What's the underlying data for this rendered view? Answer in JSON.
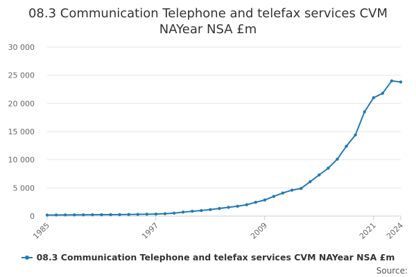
{
  "colors": {
    "series": "#1f7ab5",
    "grid": "#e6e6e6",
    "axis": "#cccccc",
    "tick_text": "#666666"
  },
  "chart_data": {
    "type": "line",
    "title": "08.3 Communication Telephone and telefax services CVM NAYear NSA £m",
    "xlabel": "",
    "ylabel": "",
    "x_range": [
      1985,
      2024
    ],
    "ylim": [
      0,
      30000
    ],
    "y_ticks": [
      0,
      5000,
      10000,
      15000,
      20000,
      25000,
      30000
    ],
    "y_tick_labels": [
      "0",
      "5 000",
      "10 000",
      "15 000",
      "20 000",
      "25 000",
      "30 000"
    ],
    "x_tick_labels": [
      "1985",
      "1997",
      "2009",
      "2021",
      "2024"
    ],
    "grid": true,
    "legend_position": "bottom",
    "series": [
      {
        "name": "08.3 Communication Telephone and telefax services CVM NAYear NSA £m",
        "x": [
          1985,
          1986,
          1987,
          1988,
          1989,
          1990,
          1991,
          1992,
          1993,
          1994,
          1995,
          1996,
          1997,
          1998,
          1999,
          2000,
          2001,
          2002,
          2003,
          2004,
          2005,
          2006,
          2007,
          2008,
          2009,
          2010,
          2011,
          2012,
          2013,
          2014,
          2015,
          2016,
          2017,
          2018,
          2019,
          2020,
          2021,
          2022,
          2023,
          2024
        ],
        "values": [
          180,
          190,
          200,
          210,
          220,
          230,
          240,
          250,
          260,
          280,
          300,
          330,
          360,
          420,
          520,
          700,
          850,
          980,
          1150,
          1350,
          1550,
          1750,
          2000,
          2450,
          2850,
          3500,
          4100,
          4600,
          4900,
          6100,
          7300,
          8500,
          10100,
          12400,
          14400,
          18500,
          21000,
          21800,
          24000,
          23800
        ]
      }
    ]
  },
  "source": {
    "label": "Source:"
  }
}
